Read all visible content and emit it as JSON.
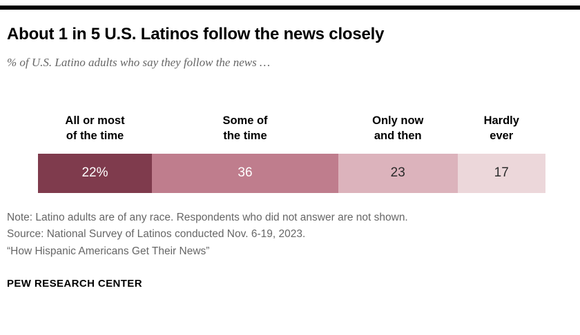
{
  "header": {
    "title": "About 1 in 5 U.S. Latinos follow the news closely",
    "subtitle": "% of U.S. Latino adults who say they follow the news …"
  },
  "chart_data": {
    "type": "bar",
    "subtype": "horizontal-stacked",
    "title": "About 1 in 5 U.S. Latinos follow the news closely",
    "categories": [
      "All or most of the time",
      "Some of the time",
      "Only now and then",
      "Hardly ever"
    ],
    "values": [
      22,
      36,
      23,
      17
    ],
    "unit": "%",
    "legend_position": "column-headers-above-bar",
    "segments": [
      {
        "category": "All or most of the time",
        "label_lines": [
          "All or most",
          "of the time"
        ],
        "value": 22,
        "value_label": "22%",
        "color": "#7f3b4d",
        "label_color": "#ffffff"
      },
      {
        "category": "Some of the time",
        "label_lines": [
          "Some of",
          "the time"
        ],
        "value": 36,
        "value_label": "36",
        "color": "#bf7d8d",
        "label_color": "#ffffff"
      },
      {
        "category": "Only now and then",
        "label_lines": [
          "Only now",
          "and then"
        ],
        "value": 23,
        "value_label": "23",
        "color": "#dcb3bc",
        "label_color": "#2b2b2b"
      },
      {
        "category": "Hardly ever",
        "label_lines": [
          "Hardly",
          "ever"
        ],
        "value": 17,
        "value_label": "17",
        "color": "#ecd7da",
        "label_color": "#2b2b2b"
      }
    ]
  },
  "footer": {
    "note": "Note: Latino adults are of any race. Respondents who did not answer are not shown.",
    "source": "Source: National Survey of Latinos conducted Nov. 6-19, 2023.",
    "quote": "“How Hispanic Americans Get Their News”",
    "brand": "PEW RESEARCH CENTER"
  }
}
